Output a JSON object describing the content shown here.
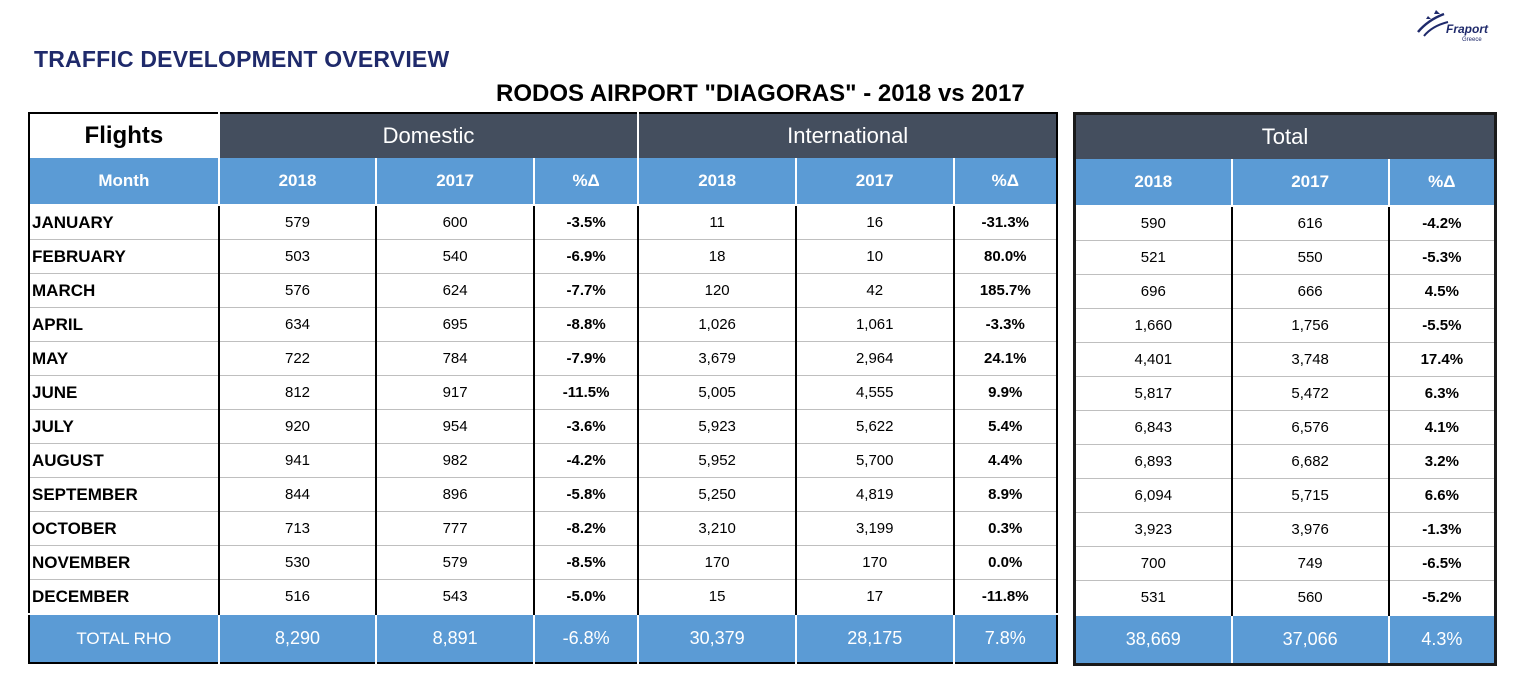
{
  "report_heading": "TRAFFIC DEVELOPMENT OVERVIEW",
  "report_title": "RODOS AIRPORT \"DIAGORAS\" - 2018 vs 2017",
  "logo": {
    "brand": "Fraport",
    "sub": "Greece"
  },
  "table": {
    "corner_label": "Flights",
    "groups": {
      "domestic": "Domestic",
      "international": "International",
      "total": "Total"
    },
    "sub_headers": {
      "month": "Month",
      "domestic": [
        "2018",
        "2017",
        "%Δ"
      ],
      "international": [
        "2018",
        "2017",
        "%Δ"
      ],
      "total": [
        "2018",
        "2017",
        "%Δ"
      ]
    },
    "rows": [
      {
        "month": "JANUARY",
        "domestic": [
          "579",
          "600",
          "-3.5%"
        ],
        "international": [
          "11",
          "16",
          "-31.3%"
        ],
        "total": [
          "590",
          "616",
          "-4.2%"
        ]
      },
      {
        "month": "FEBRUARY",
        "domestic": [
          "503",
          "540",
          "-6.9%"
        ],
        "international": [
          "18",
          "10",
          "80.0%"
        ],
        "total": [
          "521",
          "550",
          "-5.3%"
        ]
      },
      {
        "month": "MARCH",
        "domestic": [
          "576",
          "624",
          "-7.7%"
        ],
        "international": [
          "120",
          "42",
          "185.7%"
        ],
        "total": [
          "696",
          "666",
          "4.5%"
        ]
      },
      {
        "month": "APRIL",
        "domestic": [
          "634",
          "695",
          "-8.8%"
        ],
        "international": [
          "1,026",
          "1,061",
          "-3.3%"
        ],
        "total": [
          "1,660",
          "1,756",
          "-5.5%"
        ]
      },
      {
        "month": "MAY",
        "domestic": [
          "722",
          "784",
          "-7.9%"
        ],
        "international": [
          "3,679",
          "2,964",
          "24.1%"
        ],
        "total": [
          "4,401",
          "3,748",
          "17.4%"
        ]
      },
      {
        "month": "JUNE",
        "domestic": [
          "812",
          "917",
          "-11.5%"
        ],
        "international": [
          "5,005",
          "4,555",
          "9.9%"
        ],
        "total": [
          "5,817",
          "5,472",
          "6.3%"
        ]
      },
      {
        "month": "JULY",
        "domestic": [
          "920",
          "954",
          "-3.6%"
        ],
        "international": [
          "5,923",
          "5,622",
          "5.4%"
        ],
        "total": [
          "6,843",
          "6,576",
          "4.1%"
        ]
      },
      {
        "month": "AUGUST",
        "domestic": [
          "941",
          "982",
          "-4.2%"
        ],
        "international": [
          "5,952",
          "5,700",
          "4.4%"
        ],
        "total": [
          "6,893",
          "6,682",
          "3.2%"
        ]
      },
      {
        "month": "SEPTEMBER",
        "domestic": [
          "844",
          "896",
          "-5.8%"
        ],
        "international": [
          "5,250",
          "4,819",
          "8.9%"
        ],
        "total": [
          "6,094",
          "5,715",
          "6.6%"
        ]
      },
      {
        "month": "OCTOBER",
        "domestic": [
          "713",
          "777",
          "-8.2%"
        ],
        "international": [
          "3,210",
          "3,199",
          "0.3%"
        ],
        "total": [
          "3,923",
          "3,976",
          "-1.3%"
        ]
      },
      {
        "month": "NOVEMBER",
        "domestic": [
          "530",
          "579",
          "-8.5%"
        ],
        "international": [
          "170",
          "170",
          "0.0%"
        ],
        "total": [
          "700",
          "749",
          "-6.5%"
        ]
      },
      {
        "month": "DECEMBER",
        "domestic": [
          "516",
          "543",
          "-5.0%"
        ],
        "international": [
          "15",
          "17",
          "-11.8%"
        ],
        "total": [
          "531",
          "560",
          "-5.2%"
        ]
      }
    ],
    "totals": {
      "label": "TOTAL RHO",
      "domestic": [
        "8,290",
        "8,891",
        "-6.8%"
      ],
      "international": [
        "30,379",
        "28,175",
        "7.8%"
      ],
      "total": [
        "38,669",
        "37,066",
        "4.3%"
      ]
    }
  },
  "colors": {
    "heading": "#1f2a6b",
    "group_header": "#444e5e",
    "sub_header": "#5b9bd5"
  }
}
